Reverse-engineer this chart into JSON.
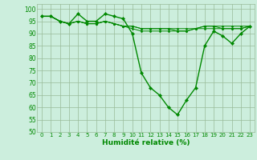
{
  "title": "",
  "xlabel": "Humidité relative (%)",
  "ylabel": "",
  "background_color": "#cceedd",
  "grid_color": "#99bb99",
  "line_color": "#008800",
  "marker_color": "#008800",
  "xlim": [
    -0.5,
    23.5
  ],
  "ylim": [
    50,
    102
  ],
  "yticks": [
    50,
    55,
    60,
    65,
    70,
    75,
    80,
    85,
    90,
    95,
    100
  ],
  "xticks": [
    0,
    1,
    2,
    3,
    4,
    5,
    6,
    7,
    8,
    9,
    10,
    11,
    12,
    13,
    14,
    15,
    16,
    17,
    18,
    19,
    20,
    21,
    22,
    23
  ],
  "series": [
    [
      97,
      97,
      95,
      94,
      98,
      95,
      95,
      98,
      97,
      96,
      90,
      74,
      68,
      65,
      60,
      57,
      63,
      68,
      85,
      91,
      89,
      86,
      90,
      93
    ],
    [
      97,
      97,
      95,
      94,
      95,
      94,
      94,
      95,
      94,
      93,
      92,
      91,
      91,
      91,
      91,
      91,
      91,
      92,
      92,
      92,
      92,
      92,
      92,
      93
    ],
    [
      97,
      97,
      95,
      94,
      95,
      94,
      94,
      95,
      94,
      93,
      93,
      92,
      92,
      92,
      92,
      91,
      91,
      92,
      93,
      93,
      92,
      92,
      92,
      93
    ],
    [
      97,
      97,
      95,
      94,
      95,
      94,
      94,
      95,
      94,
      93,
      93,
      92,
      92,
      92,
      92,
      92,
      92,
      92,
      93,
      93,
      93,
      93,
      93,
      93
    ]
  ]
}
